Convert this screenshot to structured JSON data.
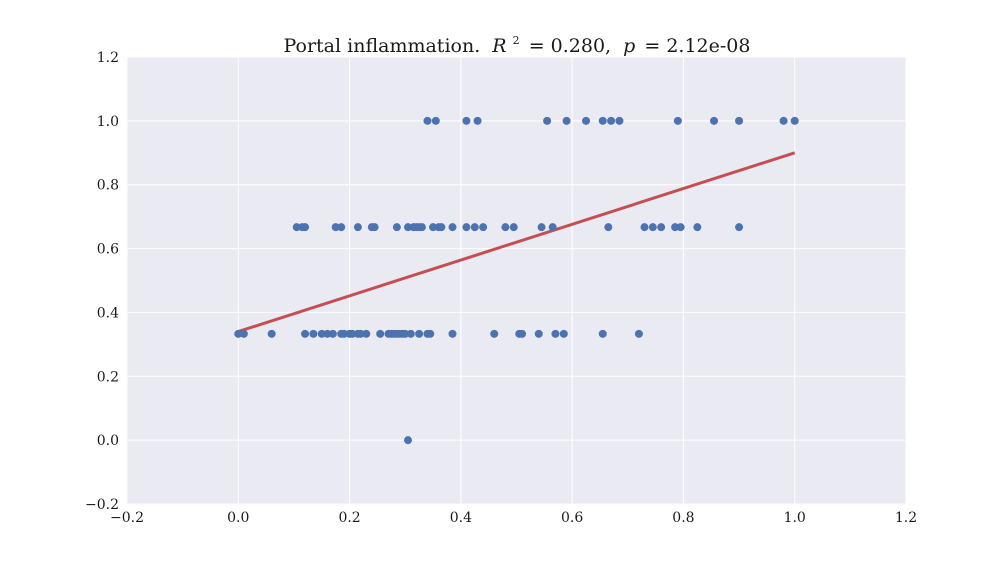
{
  "chart_data": {
    "type": "scatter",
    "title": {
      "prefix": "Portal inflammation.",
      "r2_symbol": "R",
      "r2_sup": "2",
      "r2_text": "= 0.280,",
      "p_symbol": "p",
      "p_text": "= 2.12e-08"
    },
    "xlabel": "",
    "ylabel": "",
    "xlim": [
      -0.2,
      1.2
    ],
    "ylim": [
      -0.2,
      1.2
    ],
    "x_ticks": [
      -0.2,
      0.0,
      0.2,
      0.4,
      0.6,
      0.8,
      1.0,
      1.2
    ],
    "x_tick_labels": [
      "−0.2",
      "0.0",
      "0.2",
      "0.4",
      "0.6",
      "0.8",
      "1.0",
      "1.2"
    ],
    "y_ticks": [
      -0.2,
      0.0,
      0.2,
      0.4,
      0.6,
      0.8,
      1.0,
      1.2
    ],
    "y_tick_labels": [
      "−0.2",
      "0.0",
      "0.2",
      "0.4",
      "0.6",
      "0.8",
      "1.0",
      "1.2"
    ],
    "grid": true,
    "colors": {
      "plot_background": "#EAEAF2",
      "grid": "#FFFFFF",
      "points": "#4C72B0",
      "fit_line": "#C44E52"
    },
    "series": [
      {
        "kind": "points",
        "x": [
          0.0,
          0.01,
          0.06,
          0.12,
          0.135,
          0.15,
          0.16,
          0.17,
          0.185,
          0.19,
          0.2,
          0.205,
          0.215,
          0.22,
          0.23,
          0.255,
          0.27,
          0.275,
          0.28,
          0.285,
          0.29,
          0.295,
          0.3,
          0.31,
          0.325,
          0.34,
          0.345,
          0.385,
          0.46,
          0.505,
          0.51,
          0.54,
          0.57,
          0.585,
          0.655,
          0.72,
          0.305
        ],
        "y": [
          0.333,
          0.333,
          0.333,
          0.333,
          0.333,
          0.333,
          0.333,
          0.333,
          0.333,
          0.333,
          0.333,
          0.333,
          0.333,
          0.333,
          0.333,
          0.333,
          0.333,
          0.333,
          0.333,
          0.333,
          0.333,
          0.333,
          0.333,
          0.333,
          0.333,
          0.333,
          0.333,
          0.333,
          0.333,
          0.333,
          0.333,
          0.333,
          0.333,
          0.333,
          0.333,
          0.333,
          0.0
        ]
      },
      {
        "kind": "points",
        "x": [
          0.105,
          0.115,
          0.12,
          0.175,
          0.185,
          0.215,
          0.24,
          0.245,
          0.285,
          0.305,
          0.315,
          0.32,
          0.325,
          0.33,
          0.35,
          0.36,
          0.365,
          0.385,
          0.41,
          0.425,
          0.44,
          0.48,
          0.495,
          0.545,
          0.565,
          0.665,
          0.73,
          0.745,
          0.76,
          0.785,
          0.795,
          0.825,
          0.9
        ],
        "y": [
          0.667,
          0.667,
          0.667,
          0.667,
          0.667,
          0.667,
          0.667,
          0.667,
          0.667,
          0.667,
          0.667,
          0.667,
          0.667,
          0.667,
          0.667,
          0.667,
          0.667,
          0.667,
          0.667,
          0.667,
          0.667,
          0.667,
          0.667,
          0.667,
          0.667,
          0.667,
          0.667,
          0.667,
          0.667,
          0.667,
          0.667,
          0.667,
          0.667
        ]
      },
      {
        "kind": "points",
        "x": [
          0.34,
          0.355,
          0.41,
          0.43,
          0.555,
          0.59,
          0.625,
          0.655,
          0.67,
          0.685,
          0.79,
          0.855,
          0.9,
          0.98,
          1.0
        ],
        "y": [
          1.0,
          1.0,
          1.0,
          1.0,
          1.0,
          1.0,
          1.0,
          1.0,
          1.0,
          1.0,
          1.0,
          1.0,
          1.0,
          1.0,
          1.0
        ]
      },
      {
        "kind": "fit_line",
        "x": [
          0.0,
          1.0
        ],
        "y": [
          0.34,
          0.9
        ]
      }
    ]
  }
}
